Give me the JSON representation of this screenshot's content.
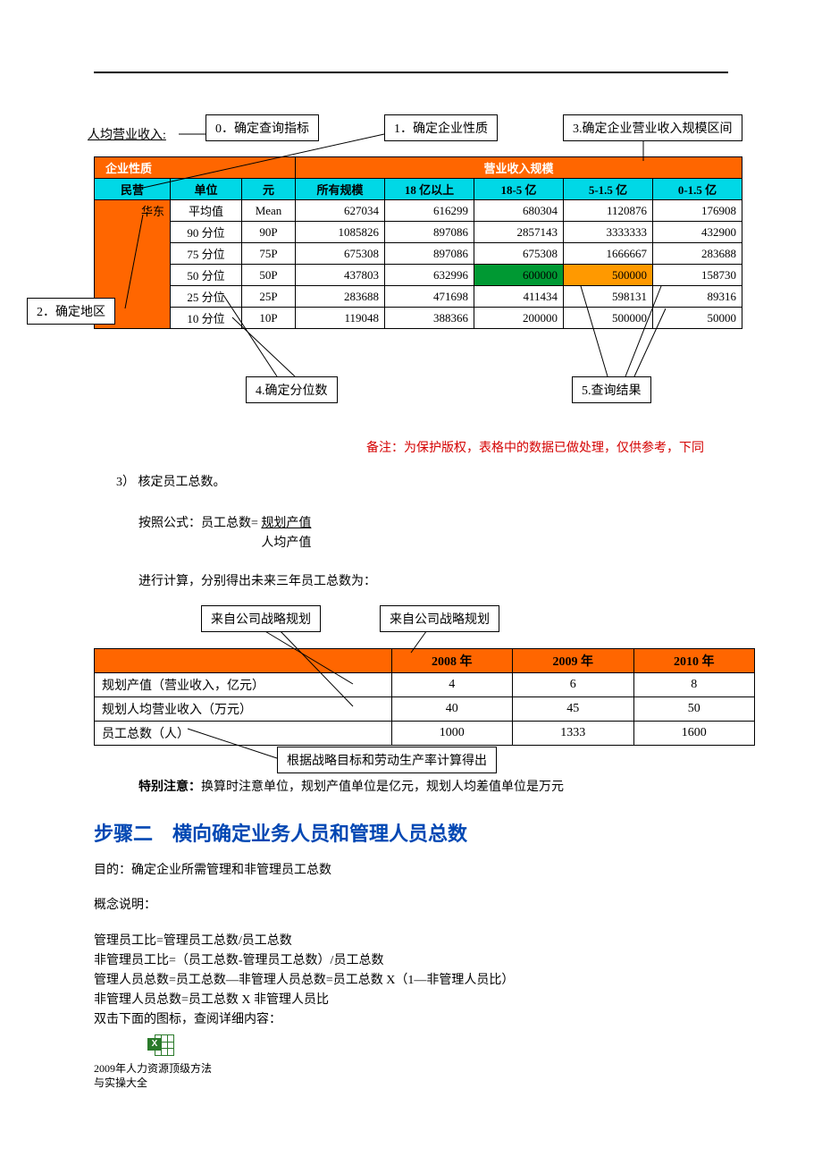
{
  "top": {
    "renjun_label": "人均营业收入:",
    "callouts": {
      "c0": "0．确定查询指标",
      "c1": "1．确定企业性质",
      "c2": "3.确定企业营业收入规模区间",
      "c3": "2．确定地区",
      "c4": "4.确定分位数",
      "c5": "5.查询结果"
    }
  },
  "table1": {
    "hdr_left": "企业性质",
    "hdr_right": "营业收入规模",
    "sub": {
      "minying": "民营",
      "danwei": "单位",
      "yuan": "元",
      "suoyou": "所有规模",
      "r1": "18 亿以上",
      "r2": "18-5 亿",
      "r3": "5-1.5 亿",
      "r4": "0-1.5 亿"
    },
    "huadong": "华东",
    "rows": [
      {
        "lbl": "平均值",
        "code": "Mean",
        "v": [
          "627034",
          "616299",
          "680304",
          "1120876",
          "176908"
        ]
      },
      {
        "lbl": "90 分位",
        "code": "90P",
        "v": [
          "1085826",
          "897086",
          "2857143",
          "3333333",
          "432900"
        ]
      },
      {
        "lbl": "75 分位",
        "code": "75P",
        "v": [
          "675308",
          "897086",
          "675308",
          "1666667",
          "283688"
        ]
      },
      {
        "lbl": "50 分位",
        "code": "50P",
        "v": [
          "437803",
          "632996",
          "600000",
          "500000",
          "158730"
        ],
        "hl": {
          "2": "cell-green",
          "3": "cell-orange"
        }
      },
      {
        "lbl": "25 分位",
        "code": "25P",
        "v": [
          "283688",
          "471698",
          "411434",
          "598131",
          "89316"
        ]
      },
      {
        "lbl": "10 分位",
        "code": "10P",
        "v": [
          "119048",
          "388366",
          "200000",
          "500000",
          "50000"
        ]
      }
    ]
  },
  "note": "备注：为保护版权，表格中的数据已做处理，仅供参考，下同",
  "section3": {
    "title": "3） 核定员工总数。",
    "formula_intro": "按照公式：员工总数=",
    "formula_num": "规划产值",
    "formula_den": "人均产值",
    "calc_line": "进行计算，分别得出未来三年员工总数为：",
    "callout_a": "来自公司战略规划",
    "callout_b": "来自公司战略规划",
    "callout_c": "根据战略目标和劳动生产率计算得出"
  },
  "table2": {
    "years": [
      "2008 年",
      "2009 年",
      "2010 年"
    ],
    "rows": [
      {
        "lbl": "规划产值（营业收入，亿元）",
        "v": [
          "4",
          "6",
          "8"
        ]
      },
      {
        "lbl": "规划人均营业收入（万元）",
        "v": [
          "40",
          "45",
          "50"
        ]
      },
      {
        "lbl": "员工总数（人）",
        "v": [
          "1000",
          "1333",
          "1600"
        ]
      }
    ],
    "warn_bold": "特别注意：",
    "warn_rest": "换算时注意单位，规划产值单位是亿元，规划人均差值单位是万元"
  },
  "step2": {
    "title": "步骤二　横向确定业务人员和管理人员总数",
    "purpose": "目的：确定企业所需管理和非管理员工总数",
    "concept": "概念说明：",
    "lines": [
      "管理员工比=管理员工总数/员工总数",
      "非管理员工比=（员工总数-管理员工总数）/员工总数",
      "管理人员总数=员工总数—非管理人员总数=员工总数 X（1—非管理人员比）",
      "非管理人员总数=员工总数 X 非管理人员比",
      "双击下面的图标，查阅详细内容："
    ],
    "caption": "2009年人力资源顶级方法与实操大全"
  }
}
